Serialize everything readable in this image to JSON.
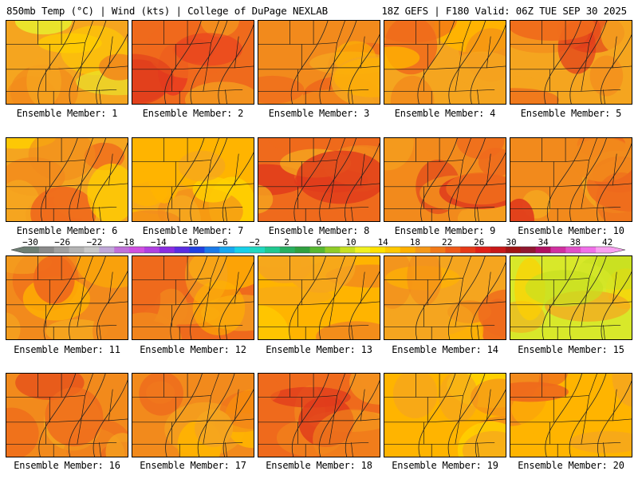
{
  "header": {
    "title": "850mb Temp (°C) | Wind (kts) | College of DuPage NEXLAB",
    "run_info": "18Z GEFS | F180 Valid: 06Z TUE SEP 30 2025"
  },
  "members": [
    {
      "label": "Ensemble Member: 1",
      "palette": [
        "#f28a1c",
        "#f5a51f",
        "#ffd000",
        "#e8e82c"
      ]
    },
    {
      "label": "Ensemble Member: 2",
      "palette": [
        "#e03a1c",
        "#ef6a1c",
        "#f5a51f",
        "#e83a20"
      ]
    },
    {
      "label": "Ensemble Member: 3",
      "palette": [
        "#ef6a1c",
        "#f28a1c",
        "#f5a51f",
        "#ffb400"
      ]
    },
    {
      "label": "Ensemble Member: 4",
      "palette": [
        "#f28a1c",
        "#f5a51f",
        "#ffb400",
        "#ef6a1c"
      ]
    },
    {
      "label": "Ensemble Member: 5",
      "palette": [
        "#ef6a1c",
        "#f5a51f",
        "#f28a1c",
        "#e03a1c"
      ]
    },
    {
      "label": "Ensemble Member: 6",
      "palette": [
        "#f28a1c",
        "#f5a51f",
        "#ef6a1c",
        "#ffd000"
      ]
    },
    {
      "label": "Ensemble Member: 7",
      "palette": [
        "#f5a51f",
        "#ffb400",
        "#ffd000",
        "#f28a1c"
      ]
    },
    {
      "label": "Ensemble Member: 8",
      "palette": [
        "#e03a1c",
        "#ef6a1c",
        "#f28a1c",
        "#f5a51f"
      ]
    },
    {
      "label": "Ensemble Member: 9",
      "palette": [
        "#ef6a1c",
        "#f28a1c",
        "#f5a51f",
        "#e03a1c"
      ]
    },
    {
      "label": "Ensemble Member: 10",
      "palette": [
        "#ef6a1c",
        "#f28a1c",
        "#f5a51f",
        "#e03a1c"
      ]
    },
    {
      "label": "Ensemble Member: 11",
      "palette": [
        "#f5a51f",
        "#f28a1c",
        "#ffb400",
        "#ef6a1c"
      ]
    },
    {
      "label": "Ensemble Member: 12",
      "palette": [
        "#f28a1c",
        "#ef6a1c",
        "#f5a51f",
        "#ffb400"
      ]
    },
    {
      "label": "Ensemble Member: 13",
      "palette": [
        "#f5a51f",
        "#ffb400",
        "#f28a1c",
        "#ffd000"
      ]
    },
    {
      "label": "Ensemble Member: 14",
      "palette": [
        "#f28a1c",
        "#f5a51f",
        "#ef6a1c",
        "#ffb400"
      ]
    },
    {
      "label": "Ensemble Member: 15",
      "palette": [
        "#c8e020",
        "#d8e82a",
        "#ffd000",
        "#f5a51f"
      ]
    },
    {
      "label": "Ensemble Member: 16",
      "palette": [
        "#ef6a1c",
        "#f28a1c",
        "#e03a1c",
        "#f5a51f"
      ]
    },
    {
      "label": "Ensemble Member: 17",
      "palette": [
        "#f5a51f",
        "#f28a1c",
        "#ffb400",
        "#ef6a1c"
      ]
    },
    {
      "label": "Ensemble Member: 18",
      "palette": [
        "#f28a1c",
        "#ef6a1c",
        "#f5a51f",
        "#e03a1c"
      ]
    },
    {
      "label": "Ensemble Member: 19",
      "palette": [
        "#f5a51f",
        "#ffb400",
        "#f28a1c",
        "#ffd000"
      ]
    },
    {
      "label": "Ensemble Member: 20",
      "palette": [
        "#f5a51f",
        "#ffb400",
        "#f28a1c",
        "#ef6a1c"
      ]
    }
  ],
  "colorbar": {
    "ticks": [
      "−30",
      "−26",
      "−22",
      "−18",
      "−14",
      "−10",
      "−6",
      "−2",
      "2",
      "6",
      "10",
      "14",
      "18",
      "22",
      "26",
      "30",
      "34",
      "38",
      "42"
    ],
    "colors": [
      "#6e7f74",
      "#8a8a8a",
      "#a0a0a0",
      "#b4b4b4",
      "#c8c8c8",
      "#c0a8d8",
      "#c070d8",
      "#d050e0",
      "#b040e0",
      "#8a2ce0",
      "#5a2ce0",
      "#2040e0",
      "#1a7ae8",
      "#18a8f0",
      "#18d0e8",
      "#20d8c0",
      "#20c890",
      "#28b060",
      "#30a040",
      "#58b830",
      "#90cc28",
      "#c8e020",
      "#f0f020",
      "#ffe000",
      "#ffc800",
      "#ffb000",
      "#f59818",
      "#f27a18",
      "#ef5a18",
      "#e63a18",
      "#e02018",
      "#c81818",
      "#a01414",
      "#901830",
      "#b01060",
      "#d030a0",
      "#e050c8",
      "#f070e8",
      "#f8a0f0"
    ]
  }
}
